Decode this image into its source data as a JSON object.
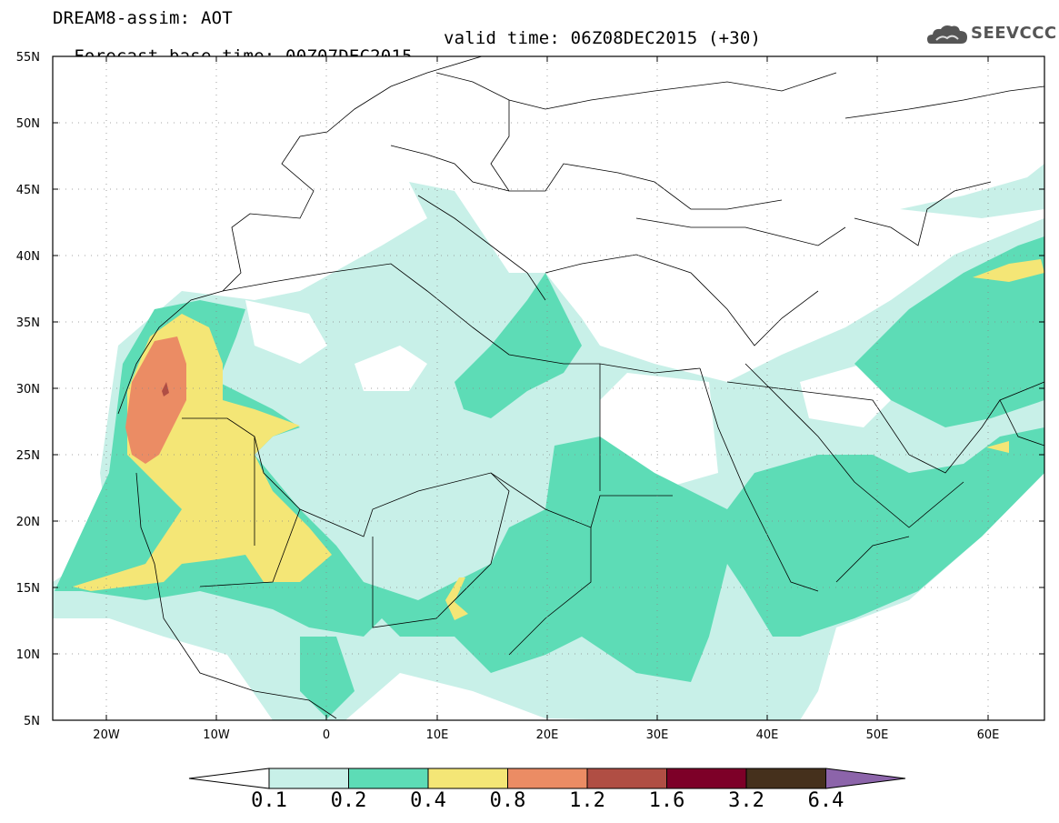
{
  "header": {
    "line1": "DREAM8-assim: AOT",
    "line2_base": "Forecast base time: 00Z07DEC2015",
    "line2_valid": "valid time: 06Z08DEC2015 (+30)",
    "logo_text": "SEEVCCC"
  },
  "axes": {
    "lat_labels": [
      "55N",
      "50N",
      "45N",
      "40N",
      "35N",
      "30N",
      "25N",
      "20N",
      "15N",
      "10N",
      "5N"
    ],
    "lon_labels": [
      "20W",
      "10W",
      "0",
      "10E",
      "20E",
      "30E",
      "40E",
      "50E",
      "60E"
    ]
  },
  "colorbar": {
    "labels": [
      "0.1",
      "0.2",
      "0.4",
      "0.8",
      "1.2",
      "1.6",
      "3.2",
      "6.4"
    ],
    "colors": [
      "#c8f0e8",
      "#5ddcb6",
      "#f4e676",
      "#eb8c64",
      "#b04e44",
      "#7d0028",
      "#45301c",
      "#8c64aa"
    ]
  }
}
